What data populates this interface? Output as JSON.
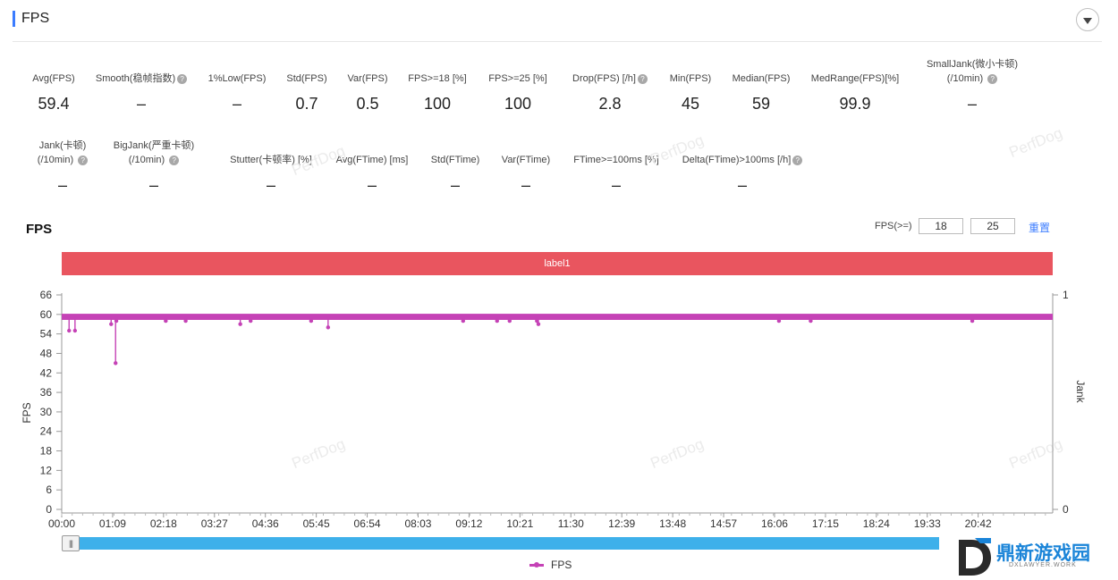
{
  "panel": {
    "title": "FPS"
  },
  "stats_row1": [
    {
      "label": "Avg(FPS)",
      "value": "59.4",
      "help": false
    },
    {
      "label": "Smooth(稳帧指数)",
      "value": "–",
      "help": true
    },
    {
      "label": "1%Low(FPS)",
      "value": "–",
      "help": false
    },
    {
      "label": "Std(FPS)",
      "value": "0.7",
      "help": false
    },
    {
      "label": "Var(FPS)",
      "value": "0.5",
      "help": false
    },
    {
      "label": "FPS>=18 [%]",
      "value": "100",
      "help": false
    },
    {
      "label": "FPS>=25 [%]",
      "value": "100",
      "help": false
    },
    {
      "label": "Drop(FPS) [/h]",
      "value": "2.8",
      "help": true
    },
    {
      "label": "Min(FPS)",
      "value": "45",
      "help": false
    },
    {
      "label": "Median(FPS)",
      "value": "59",
      "help": false
    },
    {
      "label": "MedRange(FPS)[%]",
      "value": "99.9",
      "help": false
    },
    {
      "label": "SmallJank(微小卡顿)",
      "label2": "(/10min)",
      "value": "–",
      "help": true
    }
  ],
  "stats_row2": [
    {
      "label": "Jank(卡顿)",
      "label2": "(/10min)",
      "value": "–",
      "help": true
    },
    {
      "label": "BigJank(严重卡顿)",
      "label2": "(/10min)",
      "value": "–",
      "help": true
    },
    {
      "label": "Stutter(卡顿率) [%]",
      "value": "–",
      "help": false
    },
    {
      "label": "Avg(FTime) [ms]",
      "value": "–",
      "help": false
    },
    {
      "label": "Std(FTime)",
      "value": "–",
      "help": false
    },
    {
      "label": "Var(FTime)",
      "value": "–",
      "help": false
    },
    {
      "label": "FTime>=100ms [%]",
      "value": "–",
      "help": false
    },
    {
      "label": "Delta(FTime)>100ms [/h]",
      "value": "–",
      "help": true
    }
  ],
  "watermark": "PerfDog",
  "chart_header": {
    "title": "FPS",
    "threshold_label": "FPS(>=)",
    "threshold_1": "18",
    "threshold_2": "25",
    "reset_label": "重置"
  },
  "label_band": "label1",
  "legend": {
    "series_name": "FPS"
  },
  "logo": {
    "name": "鼎新游戏园",
    "sub": "DXLAWYER.WORK"
  },
  "colors": {
    "series": "#c542b6",
    "band": "#e9555f",
    "accent": "#3b7cff",
    "scrollbar": "#3eb0ea"
  },
  "chart_data": {
    "type": "line",
    "ylabel": "FPS",
    "y2label": "Jank",
    "ylim": [
      0,
      66
    ],
    "yticks": [
      0,
      6,
      12,
      18,
      24,
      30,
      36,
      42,
      48,
      54,
      60,
      66
    ],
    "y2lim": [
      0,
      1
    ],
    "y2ticks": [
      "0",
      "1"
    ],
    "x_ticks": [
      "00:00",
      "01:09",
      "02:18",
      "03:27",
      "04:36",
      "05:45",
      "06:54",
      "08:03",
      "09:12",
      "10:21",
      "11:30",
      "12:39",
      "13:48",
      "14:57",
      "16:06",
      "17:15",
      "18:24",
      "19:33",
      "20:42"
    ],
    "x_range_seconds": [
      0,
      1343
    ],
    "baseline_fps": 59,
    "series": [
      {
        "name": "FPS",
        "dips": [
          {
            "t": "00:10",
            "fps": 55
          },
          {
            "t": "00:18",
            "fps": 55
          },
          {
            "t": "01:07",
            "fps": 57
          },
          {
            "t": "01:13",
            "fps": 45
          },
          {
            "t": "01:14",
            "fps": 58
          },
          {
            "t": "02:21",
            "fps": 58
          },
          {
            "t": "02:48",
            "fps": 58
          },
          {
            "t": "04:02",
            "fps": 57
          },
          {
            "t": "04:16",
            "fps": 58
          },
          {
            "t": "05:38",
            "fps": 58
          },
          {
            "t": "06:01",
            "fps": 56
          },
          {
            "t": "09:04",
            "fps": 58
          },
          {
            "t": "09:50",
            "fps": 58
          },
          {
            "t": "10:07",
            "fps": 58
          },
          {
            "t": "10:44",
            "fps": 58
          },
          {
            "t": "10:46",
            "fps": 57
          },
          {
            "t": "16:12",
            "fps": 58
          },
          {
            "t": "16:55",
            "fps": 58
          },
          {
            "t": "20:34",
            "fps": 58
          }
        ]
      }
    ]
  }
}
